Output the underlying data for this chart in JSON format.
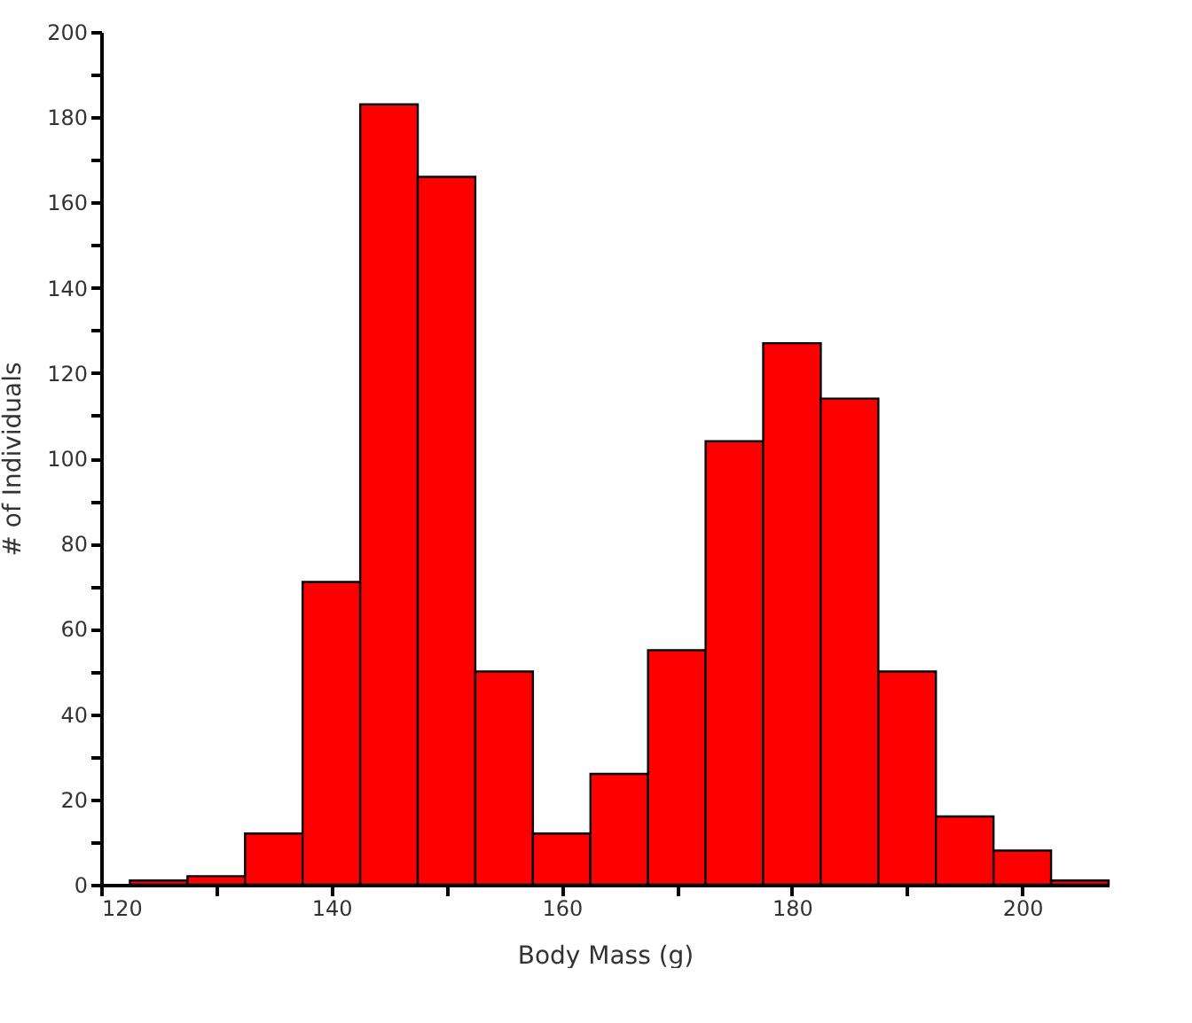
{
  "chart_data": {
    "type": "histogram",
    "xlabel": "Body Mass (g)",
    "ylabel": "# of Individuals",
    "color": "#ff0000",
    "bins": [
      122.5,
      127.5,
      132.5,
      137.5,
      142.5,
      147.5,
      152.5,
      157.5,
      162.5,
      167.5,
      172.5,
      177.5,
      182.5,
      187.5,
      192.5,
      197.5,
      202.5,
      207.5
    ],
    "values": [
      1,
      2,
      12,
      71,
      183,
      166,
      50,
      12,
      26,
      55,
      104,
      127,
      114,
      50,
      16,
      8,
      1
    ],
    "xlim": [
      120,
      207.5
    ],
    "xticks": [
      120,
      {
        "value": 130,
        "label": null
      },
      140,
      {
        "value": 150,
        "label": null
      },
      160,
      {
        "value": 170,
        "label": null
      },
      180,
      {
        "value": 190,
        "label": null
      },
      200
    ],
    "ylim": [
      0,
      200
    ],
    "yticks": [
      0,
      {
        "value": 10,
        "label": null
      },
      20,
      {
        "value": 30,
        "label": null
      },
      40,
      {
        "value": 50,
        "label": null
      },
      60,
      {
        "value": 70,
        "label": null
      },
      80,
      {
        "value": 90,
        "label": null
      },
      100,
      {
        "value": 110,
        "label": null
      },
      120,
      {
        "value": 130,
        "label": null
      },
      140,
      {
        "value": 150,
        "label": null
      },
      160,
      {
        "value": 170,
        "label": null
      },
      180,
      {
        "value": 190,
        "label": null
      },
      200
    ],
    "grid": false
  }
}
